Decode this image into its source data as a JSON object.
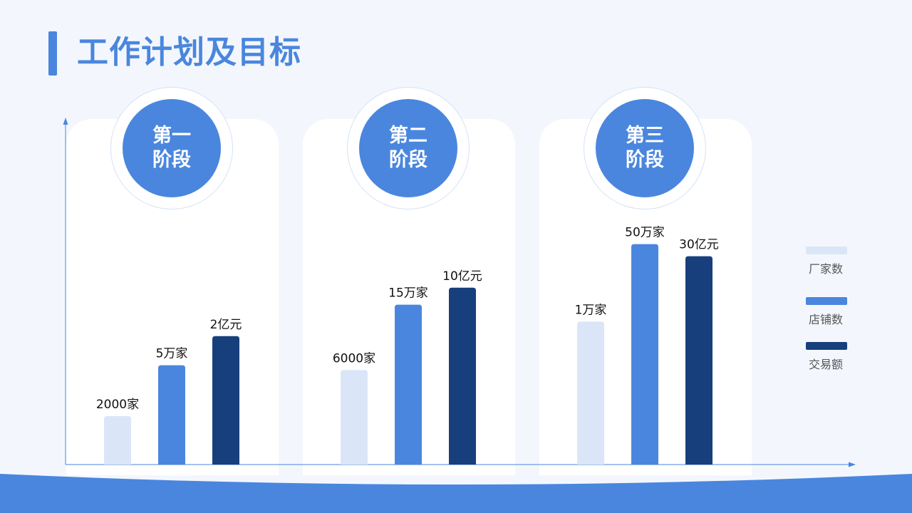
{
  "page": {
    "title": "工作计划及目标"
  },
  "stages": [
    {
      "label_line1": "第一",
      "label_line2": "阶段"
    },
    {
      "label_line1": "第二",
      "label_line2": "阶段"
    },
    {
      "label_line1": "第三",
      "label_line2": "阶段"
    }
  ],
  "legend": [
    {
      "label": "厂家数",
      "color": "#dae6f7"
    },
    {
      "label": "店铺数",
      "color": "#4a86de"
    },
    {
      "label": "交易额",
      "color": "#173f7c"
    }
  ],
  "chart_data": {
    "type": "bar",
    "categories": [
      "第一阶段",
      "第二阶段",
      "第三阶段"
    ],
    "series": [
      {
        "name": "厂家数",
        "color": "#dae6f7",
        "values": [
          2000,
          6000,
          10000
        ],
        "labels": [
          "2000家",
          "6000家",
          "1万家"
        ]
      },
      {
        "name": "店铺数",
        "color": "#4a86de",
        "values": [
          50000,
          150000,
          500000
        ],
        "labels": [
          "5万家",
          "15万家",
          "50万家"
        ]
      },
      {
        "name": "交易额",
        "color": "#173f7c",
        "values": [
          200000000,
          1000000000,
          3000000000
        ],
        "labels": [
          "2亿元",
          "10亿元",
          "30亿元"
        ]
      }
    ],
    "bar_levels": [
      [
        0.2,
        0.39,
        0.59
      ],
      [
        0.41,
        0.66,
        0.91
      ],
      [
        0.53,
        0.73,
        0.86
      ]
    ],
    "legend_position": "right",
    "grid": false
  }
}
